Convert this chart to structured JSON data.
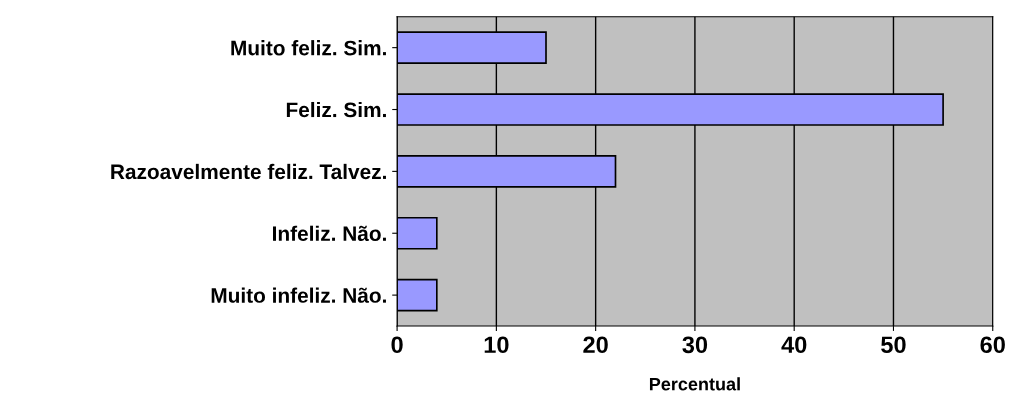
{
  "chart_data": {
    "type": "bar",
    "orientation": "horizontal",
    "xlabel": "Percentual",
    "categories": [
      "Muito feliz. Sim.",
      "Feliz. Sim.",
      "Razoavelmente feliz. Talvez.",
      "Infeliz. Não.",
      "Muito infeliz. Não."
    ],
    "values": [
      15,
      55,
      22,
      4,
      4
    ],
    "color": "#9999ff",
    "xlim": [
      0,
      60
    ],
    "xticks": [
      0,
      10,
      20,
      30,
      40,
      50,
      60
    ],
    "grid": "x"
  }
}
